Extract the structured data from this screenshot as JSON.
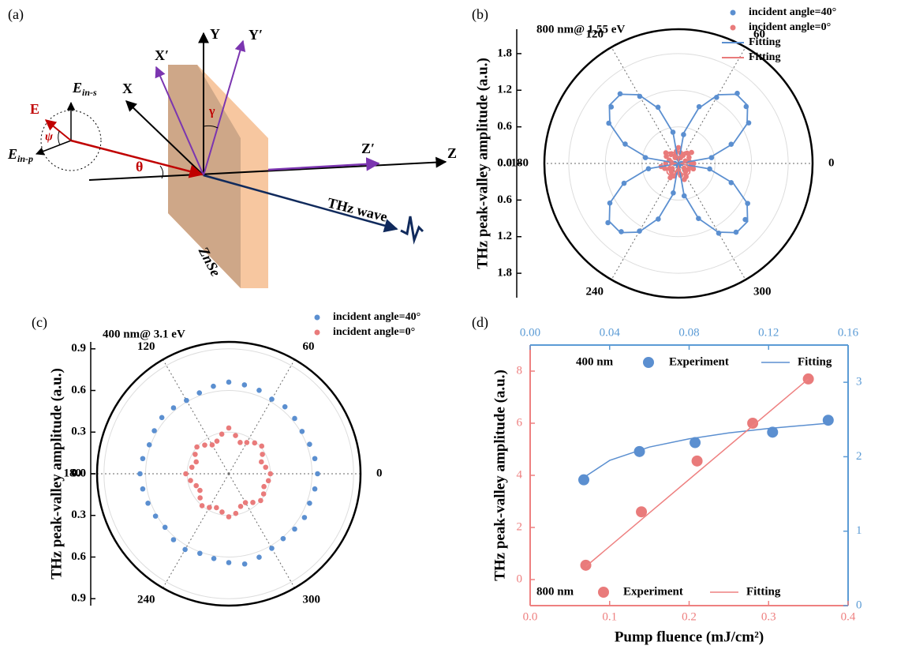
{
  "diagram": {
    "panel_label": "(a)",
    "labels": {
      "Y": "Y",
      "Y_prime": "Y′",
      "X_prime": "X′",
      "X": "X",
      "E_in_s": {
        "base": "E",
        "sub": "in-s"
      },
      "E": "E",
      "psi": "ψ",
      "E_in_p": {
        "base": "E",
        "sub": "in-p"
      },
      "theta": "θ",
      "gamma": "γ",
      "Z_prime": "Z′",
      "Z": "Z",
      "thz_wave": "THz wave",
      "crystal": "ZnSe"
    }
  },
  "chart_data": [
    {
      "type": "polar",
      "panel_label": "(b)",
      "subtitle": "800 nm@ 1.55 eV",
      "y_label": "THz peak-valley amplitude (a.u.)",
      "rlim": [
        0,
        2.2
      ],
      "rticks": [
        {
          "value": 0,
          "label": "0.0"
        },
        0.6,
        1.2,
        1.8
      ],
      "angle_ticks": [
        0,
        60,
        120,
        180,
        240,
        300
      ],
      "series": [
        {
          "name": "incident angle=40°",
          "color": "#5b8fd0",
          "mode": "markers",
          "angles": [
            0,
            10,
            20,
            30,
            40,
            50,
            60,
            70,
            80,
            90,
            100,
            110,
            120,
            130,
            140,
            150,
            160,
            170,
            180,
            190,
            200,
            210,
            220,
            230,
            240,
            250,
            260,
            270,
            280,
            290,
            300,
            310,
            320,
            330,
            340,
            350
          ],
          "values": [
            0.05,
            0.55,
            0.92,
            1.33,
            1.45,
            1.5,
            1.25,
            0.99,
            0.48,
            0.08,
            0.52,
            0.98,
            1.27,
            1.49,
            1.44,
            1.32,
            0.93,
            0.55,
            0.06,
            0.5,
            0.95,
            1.3,
            1.51,
            1.46,
            1.28,
            0.97,
            0.49,
            0.04,
            0.54,
            0.96,
            1.32,
            1.47,
            1.43,
            1.31,
            0.92,
            0.52
          ]
        },
        {
          "name": "incident angle=0°",
          "color": "#e97b7b",
          "mode": "markers",
          "angles": [
            0,
            10,
            20,
            30,
            40,
            50,
            60,
            70,
            80,
            90,
            100,
            110,
            120,
            130,
            140,
            150,
            160,
            170,
            180,
            190,
            200,
            210,
            220,
            230,
            240,
            250,
            260,
            270,
            280,
            290,
            300,
            310,
            320,
            330,
            340,
            350
          ],
          "values": [
            0.25,
            0.18,
            0.12,
            0.2,
            0.28,
            0.22,
            0.15,
            0.1,
            0.18,
            0.26,
            0.2,
            0.14,
            0.11,
            0.19,
            0.27,
            0.23,
            0.16,
            0.12,
            0.21,
            0.29,
            0.24,
            0.17,
            0.13,
            0.18,
            0.27,
            0.22,
            0.15,
            0.11,
            0.2,
            0.28,
            0.25,
            0.18,
            0.12,
            0.19,
            0.26,
            0.21
          ]
        },
        {
          "name": "Fitting",
          "color": "#5b8fd0",
          "mode": "line",
          "angles": [
            0,
            10,
            20,
            30,
            40,
            50,
            60,
            70,
            80,
            90,
            100,
            110,
            120,
            130,
            140,
            150,
            160,
            170,
            180,
            190,
            200,
            210,
            220,
            230,
            240,
            250,
            260,
            270,
            280,
            290,
            300,
            310,
            320,
            330,
            340,
            350
          ],
          "values": [
            0,
            0.51,
            0.96,
            1.3,
            1.48,
            1.48,
            1.3,
            0.96,
            0.51,
            0,
            0.51,
            0.96,
            1.3,
            1.48,
            1.48,
            1.3,
            0.96,
            0.51,
            0,
            0.51,
            0.96,
            1.3,
            1.48,
            1.48,
            1.3,
            0.96,
            0.51,
            0,
            0.51,
            0.96,
            1.3,
            1.48,
            1.48,
            1.3,
            0.96,
            0.51
          ]
        },
        {
          "name": "Fitting",
          "color": "#e97b7b",
          "mode": "line",
          "angles": [
            0,
            10,
            20,
            30,
            40,
            50,
            60,
            70,
            80,
            90,
            100,
            110,
            120,
            130,
            140,
            150,
            160,
            170,
            180,
            190,
            200,
            210,
            220,
            230,
            240,
            250,
            260,
            270,
            280,
            290,
            300,
            310,
            320,
            330,
            340,
            350
          ],
          "values": [
            0.05,
            0.12,
            0.18,
            0.22,
            0.24,
            0.24,
            0.22,
            0.18,
            0.12,
            0.05,
            0.12,
            0.18,
            0.22,
            0.24,
            0.24,
            0.22,
            0.18,
            0.12,
            0.05,
            0.12,
            0.18,
            0.22,
            0.24,
            0.24,
            0.22,
            0.18,
            0.12,
            0.05,
            0.12,
            0.18,
            0.22,
            0.24,
            0.24,
            0.22,
            0.18,
            0.12
          ]
        }
      ]
    },
    {
      "type": "polar",
      "panel_label": "(c)",
      "subtitle": "400 nm@ 3.1 eV",
      "y_label": "THz peak-valley  amplitude (a.u.)",
      "rlim": [
        0,
        0.95
      ],
      "rticks": [
        {
          "value": 0,
          "label": "0.0"
        },
        0.3,
        0.6,
        0.9
      ],
      "angle_ticks": [
        0,
        60,
        120,
        180,
        240,
        300
      ],
      "series": [
        {
          "name": "incident angle=40°",
          "color": "#5b8fd0",
          "mode": "markers",
          "angles": [
            0,
            10,
            20,
            30,
            40,
            50,
            60,
            70,
            80,
            90,
            100,
            110,
            120,
            130,
            140,
            150,
            160,
            170,
            180,
            190,
            200,
            210,
            220,
            230,
            240,
            250,
            260,
            270,
            280,
            290,
            300,
            310,
            320,
            330,
            340,
            350
          ],
          "values": [
            0.64,
            0.63,
            0.62,
            0.61,
            0.62,
            0.63,
            0.62,
            0.64,
            0.65,
            0.66,
            0.64,
            0.62,
            0.61,
            0.62,
            0.63,
            0.62,
            0.61,
            0.63,
            0.64,
            0.63,
            0.62,
            0.61,
            0.6,
            0.62,
            0.63,
            0.61,
            0.62,
            0.64,
            0.66,
            0.64,
            0.62,
            0.61,
            0.62,
            0.63,
            0.62,
            0.63
          ]
        },
        {
          "name": "incident angle=0°",
          "color": "#e97b7b",
          "mode": "markers",
          "angles": [
            0,
            10,
            20,
            30,
            40,
            50,
            60,
            70,
            80,
            90,
            100,
            110,
            120,
            130,
            140,
            150,
            160,
            170,
            180,
            190,
            200,
            210,
            220,
            230,
            240,
            250,
            260,
            270,
            280,
            290,
            300,
            310,
            320,
            330,
            340,
            350
          ],
          "values": [
            0.3,
            0.27,
            0.25,
            0.28,
            0.31,
            0.29,
            0.26,
            0.24,
            0.28,
            0.33,
            0.29,
            0.25,
            0.24,
            0.27,
            0.3,
            0.28,
            0.25,
            0.27,
            0.31,
            0.28,
            0.25,
            0.24,
            0.27,
            0.3,
            0.28,
            0.26,
            0.28,
            0.31,
            0.29,
            0.25,
            0.24,
            0.27,
            0.3,
            0.29,
            0.27,
            0.29
          ]
        }
      ]
    },
    {
      "type": "dual_scatter",
      "panel_label": "(d)",
      "x_label": "Pump fluence (mJ/cm²)",
      "y_label": "THz peak-valley amplitude (a.u.)",
      "xlim": [
        0,
        0.4
      ],
      "xticks": [
        {
          "value": 0,
          "label": "0.0"
        },
        0.1,
        0.2,
        0.3,
        0.4
      ],
      "ylim": [
        -1,
        9
      ],
      "yticks": [
        0,
        2,
        4,
        6,
        8
      ],
      "x2lim": [
        0,
        0.16
      ],
      "x2ticks": [
        {
          "value": 0,
          "label": "0.00"
        },
        0.04,
        0.08,
        0.12,
        0.16
      ],
      "y2lim": [
        0,
        3.5
      ],
      "y2ticks": [
        0,
        1,
        2,
        3
      ],
      "x_color": "#ee8080",
      "x2_color": "#5b9bd5",
      "groups": [
        {
          "label": "400 nm",
          "axis": "y2",
          "series": [
            {
              "name": "Experiment",
              "color": "#5b8fd0",
              "mode": "markers",
              "x": [
                0.027,
                0.055,
                0.083,
                0.122,
                0.15
              ],
              "values": [
                1.69,
                2.07,
                2.19,
                2.33,
                2.49
              ]
            },
            {
              "name": "Fitting",
              "color": "#5b8fd0",
              "mode": "line",
              "x": [
                0.027,
                0.04,
                0.06,
                0.08,
                0.1,
                0.12,
                0.15
              ],
              "values": [
                1.72,
                1.95,
                2.13,
                2.24,
                2.32,
                2.38,
                2.45
              ]
            }
          ]
        },
        {
          "label": "800 nm",
          "axis": "y",
          "series": [
            {
              "name": "Experiment",
              "color": "#e97b7b",
              "mode": "markers",
              "x": [
                0.07,
                0.14,
                0.21,
                0.28,
                0.35
              ],
              "values": [
                0.55,
                2.6,
                4.55,
                6.0,
                7.7
              ]
            },
            {
              "name": "Fitting",
              "color": "#ee8080",
              "mode": "line",
              "x": [
                0.07,
                0.35
              ],
              "values": [
                0.5,
                7.7
              ]
            }
          ]
        }
      ]
    }
  ]
}
